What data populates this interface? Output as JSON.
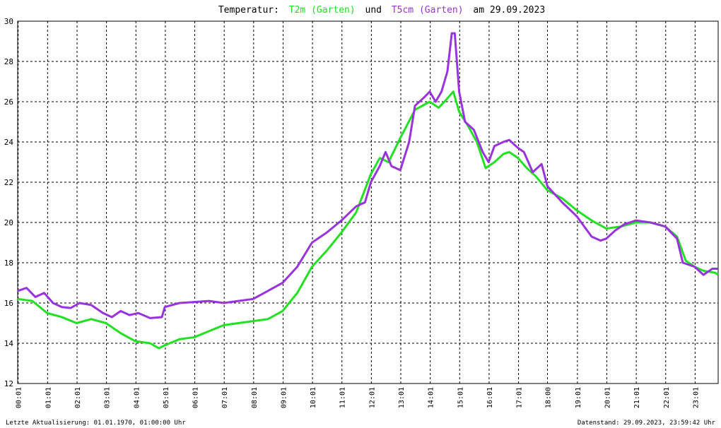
{
  "chart_data": {
    "type": "line",
    "title_start": "Temperatur:",
    "title_join": "und",
    "title_end": "am 29.09.2023",
    "footer_left": "Letzte Aktualisierung: 01.01.1970, 01:00:00 Uhr",
    "footer_right": "Datenstand: 29.09.2023, 23:59:42 Uhr",
    "xlim": [
      0,
      23.8
    ],
    "xticks": [
      {
        "value": 0.017,
        "label": "00:01"
      },
      {
        "value": 1.017,
        "label": "01:01"
      },
      {
        "value": 2.017,
        "label": "02:01"
      },
      {
        "value": 3.017,
        "label": "03:01"
      },
      {
        "value": 4.017,
        "label": "04:01"
      },
      {
        "value": 5.017,
        "label": "05:01"
      },
      {
        "value": 6.017,
        "label": "06:01"
      },
      {
        "value": 7.017,
        "label": "07:01"
      },
      {
        "value": 8.017,
        "label": "08:01"
      },
      {
        "value": 9.017,
        "label": "09:01"
      },
      {
        "value": 10.017,
        "label": "10:01"
      },
      {
        "value": 11.017,
        "label": "11:01"
      },
      {
        "value": 12.017,
        "label": "12:01"
      },
      {
        "value": 13.017,
        "label": "13:01"
      },
      {
        "value": 14.017,
        "label": "14:01"
      },
      {
        "value": 15.017,
        "label": "15:01"
      },
      {
        "value": 16.017,
        "label": "16:01"
      },
      {
        "value": 17.017,
        "label": "17:01"
      },
      {
        "value": 18.0,
        "label": "18:00"
      },
      {
        "value": 19.017,
        "label": "19:01"
      },
      {
        "value": 20.017,
        "label": "20:01"
      },
      {
        "value": 21.017,
        "label": "21:01"
      },
      {
        "value": 22.017,
        "label": "22:01"
      },
      {
        "value": 23.017,
        "label": "23:01"
      }
    ],
    "ylim": [
      12,
      30
    ],
    "yticks": [
      12,
      14,
      16,
      18,
      20,
      22,
      24,
      26,
      28,
      30
    ],
    "grid": true,
    "series": [
      {
        "name": "T2m (Garten)",
        "color": "#22e022",
        "x": [
          0,
          0.5,
          1.0,
          1.5,
          2.0,
          2.5,
          3.0,
          3.5,
          4.0,
          4.5,
          4.8,
          5.0,
          5.5,
          6.0,
          6.5,
          7.0,
          7.5,
          8.0,
          8.5,
          9.0,
          9.5,
          10.0,
          10.5,
          11.0,
          11.5,
          12.0,
          12.3,
          12.6,
          13.0,
          13.5,
          14.0,
          14.3,
          14.5,
          14.8,
          15.0,
          15.3,
          15.6,
          15.9,
          16.2,
          16.5,
          16.7,
          17.0,
          17.3,
          17.6,
          18.0,
          18.5,
          19.0,
          19.5,
          20.0,
          20.5,
          21.0,
          21.5,
          22.0,
          22.4,
          22.7,
          23.0,
          23.3,
          23.7,
          23.8
        ],
        "values": [
          16.2,
          16.1,
          15.5,
          15.3,
          15.0,
          15.2,
          15.0,
          14.5,
          14.1,
          14.0,
          13.75,
          13.9,
          14.2,
          14.3,
          14.6,
          14.9,
          15.0,
          15.1,
          15.2,
          15.6,
          16.5,
          17.8,
          18.6,
          19.5,
          20.5,
          22.4,
          23.2,
          23.0,
          24.2,
          25.6,
          26.0,
          25.7,
          26.0,
          26.5,
          25.5,
          24.8,
          24.0,
          22.7,
          23.0,
          23.4,
          23.5,
          23.2,
          22.7,
          22.3,
          21.6,
          21.2,
          20.6,
          20.1,
          19.7,
          19.8,
          20.0,
          20.0,
          19.8,
          19.3,
          18.1,
          17.8,
          17.6,
          17.5,
          17.4
        ]
      },
      {
        "name": "T5cm (Garten)",
        "color": "#9933dd",
        "x": [
          0,
          0.3,
          0.6,
          0.9,
          1.2,
          1.5,
          1.8,
          2.1,
          2.5,
          2.9,
          3.2,
          3.5,
          3.8,
          4.1,
          4.5,
          4.9,
          5.0,
          5.5,
          6.0,
          6.5,
          7.0,
          7.5,
          8.0,
          8.5,
          9.0,
          9.5,
          10.0,
          10.5,
          11.0,
          11.5,
          11.8,
          12.0,
          12.3,
          12.5,
          12.7,
          13.0,
          13.3,
          13.5,
          13.8,
          14.0,
          14.2,
          14.4,
          14.6,
          14.75,
          14.85,
          15.0,
          15.2,
          15.5,
          15.8,
          16.0,
          16.2,
          16.5,
          16.7,
          17.0,
          17.2,
          17.5,
          17.8,
          18.0,
          18.5,
          19.0,
          19.5,
          19.8,
          20.0,
          20.3,
          20.6,
          21.0,
          21.5,
          22.0,
          22.4,
          22.6,
          23.0,
          23.3,
          23.6,
          23.8
        ],
        "values": [
          16.6,
          16.75,
          16.3,
          16.5,
          16.0,
          15.8,
          15.75,
          16.0,
          15.9,
          15.5,
          15.3,
          15.6,
          15.4,
          15.5,
          15.25,
          15.3,
          15.8,
          16.0,
          16.05,
          16.1,
          16.0,
          16.1,
          16.2,
          16.6,
          17.0,
          17.8,
          19.0,
          19.5,
          20.1,
          20.8,
          21.0,
          22.0,
          22.8,
          23.5,
          22.8,
          22.6,
          24.0,
          25.8,
          26.2,
          26.5,
          26.0,
          26.5,
          27.5,
          29.4,
          29.4,
          26.5,
          25.0,
          24.6,
          23.5,
          23.0,
          23.8,
          24.0,
          24.1,
          23.7,
          23.5,
          22.5,
          22.9,
          21.8,
          21.0,
          20.3,
          19.3,
          19.1,
          19.2,
          19.6,
          19.9,
          20.1,
          20.0,
          19.8,
          19.2,
          18.0,
          17.8,
          17.4,
          17.7,
          17.7
        ]
      }
    ]
  }
}
